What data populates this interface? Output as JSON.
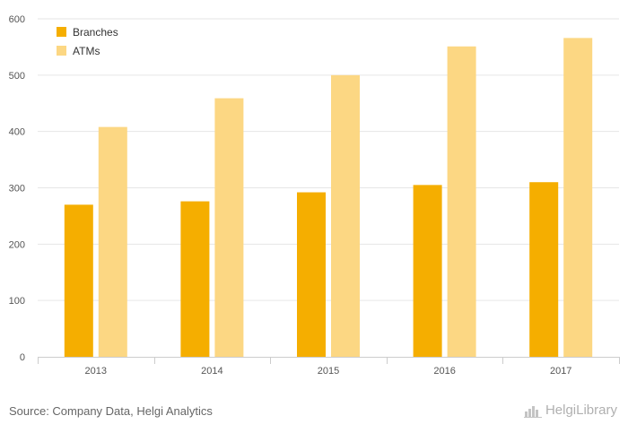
{
  "chart_data": {
    "type": "bar",
    "categories": [
      "2013",
      "2014",
      "2015",
      "2016",
      "2017"
    ],
    "series": [
      {
        "name": "Branches",
        "values": [
          270,
          276,
          292,
          305,
          310
        ],
        "color": "#f5ae00"
      },
      {
        "name": "ATMs",
        "values": [
          408,
          459,
          500,
          551,
          566
        ],
        "color": "#fcd783"
      }
    ],
    "ylim": [
      0,
      600
    ],
    "yticks": [
      0,
      100,
      200,
      300,
      400,
      500,
      600
    ],
    "grid": true,
    "legend_position": "top-left",
    "title": "",
    "xlabel": "",
    "ylabel": ""
  },
  "footer": {
    "source": "Source: Company Data, Helgi Analytics",
    "brand": "HelgiLibrary"
  }
}
